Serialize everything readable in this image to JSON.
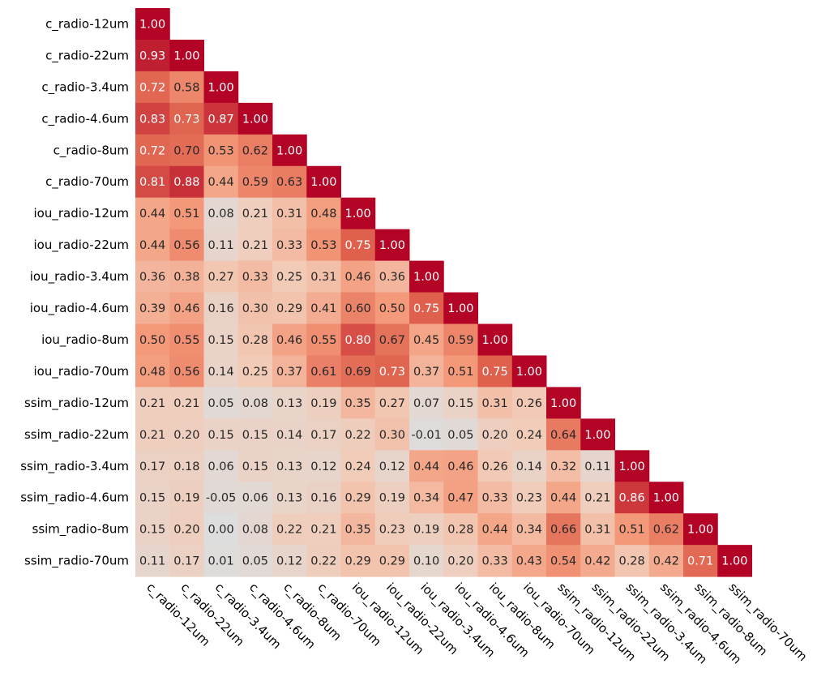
{
  "chart_data": {
    "type": "heatmap",
    "title": "",
    "xlabel": "",
    "ylabel": "",
    "triangle": "lower",
    "color_range": [
      -1,
      1
    ],
    "colors": {
      "negative": "#3b6fb6",
      "neutral": "#dddddd",
      "positive": "#b40426"
    },
    "labels": [
      "c_radio-12um",
      "c_radio-22um",
      "c_radio-3.4um",
      "c_radio-4.6um",
      "c_radio-8um",
      "c_radio-70um",
      "iou_radio-12um",
      "iou_radio-22um",
      "iou_radio-3.4um",
      "iou_radio-4.6um",
      "iou_radio-8um",
      "iou_radio-70um",
      "ssim_radio-12um",
      "ssim_radio-22um",
      "ssim_radio-3.4um",
      "ssim_radio-4.6um",
      "ssim_radio-8um",
      "ssim_radio-70um"
    ],
    "matrix": [
      [
        1.0
      ],
      [
        0.93,
        1.0
      ],
      [
        0.72,
        0.58,
        1.0
      ],
      [
        0.83,
        0.73,
        0.87,
        1.0
      ],
      [
        0.72,
        0.7,
        0.53,
        0.62,
        1.0
      ],
      [
        0.81,
        0.88,
        0.44,
        0.59,
        0.63,
        1.0
      ],
      [
        0.44,
        0.51,
        0.08,
        0.21,
        0.31,
        0.48,
        1.0
      ],
      [
        0.44,
        0.56,
        0.11,
        0.21,
        0.33,
        0.53,
        0.75,
        1.0
      ],
      [
        0.36,
        0.38,
        0.27,
        0.33,
        0.25,
        0.31,
        0.46,
        0.36,
        1.0
      ],
      [
        0.39,
        0.46,
        0.16,
        0.3,
        0.29,
        0.41,
        0.6,
        0.5,
        0.75,
        1.0
      ],
      [
        0.5,
        0.55,
        0.15,
        0.28,
        0.46,
        0.55,
        0.8,
        0.67,
        0.45,
        0.59,
        1.0
      ],
      [
        0.48,
        0.56,
        0.14,
        0.25,
        0.37,
        0.61,
        0.69,
        0.73,
        0.37,
        0.51,
        0.75,
        1.0
      ],
      [
        0.21,
        0.21,
        0.05,
        0.08,
        0.13,
        0.19,
        0.35,
        0.27,
        0.07,
        0.15,
        0.31,
        0.26,
        1.0
      ],
      [
        0.21,
        0.2,
        0.15,
        0.15,
        0.14,
        0.17,
        0.22,
        0.3,
        -0.01,
        0.05,
        0.2,
        0.24,
        0.64,
        1.0
      ],
      [
        0.17,
        0.18,
        0.06,
        0.15,
        0.13,
        0.12,
        0.24,
        0.12,
        0.44,
        0.46,
        0.26,
        0.14,
        0.32,
        0.11,
        1.0
      ],
      [
        0.15,
        0.19,
        -0.05,
        0.06,
        0.13,
        0.16,
        0.29,
        0.19,
        0.34,
        0.47,
        0.33,
        0.23,
        0.44,
        0.21,
        0.86,
        1.0
      ],
      [
        0.15,
        0.2,
        0.0,
        0.08,
        0.22,
        0.21,
        0.35,
        0.23,
        0.19,
        0.28,
        0.44,
        0.34,
        0.66,
        0.31,
        0.51,
        0.62,
        1.0
      ],
      [
        0.11,
        0.17,
        0.01,
        0.05,
        0.12,
        0.22,
        0.29,
        0.29,
        0.1,
        0.2,
        0.33,
        0.43,
        0.54,
        0.42,
        0.28,
        0.42,
        0.71,
        1.0
      ]
    ]
  }
}
